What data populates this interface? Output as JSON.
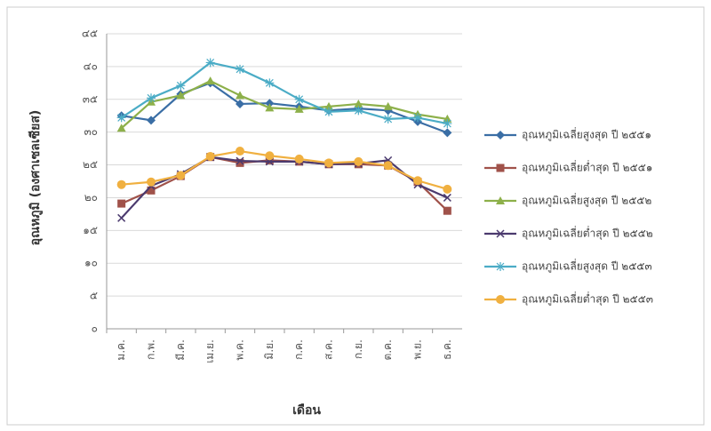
{
  "chart_data": {
    "type": "line",
    "y_label": "อุณหภูมิ (องศาเซลเซียส)",
    "x_label": "เดือน",
    "categories": [
      "ม.ค.",
      "ก.พ.",
      "มี.ค.",
      "เม.ย.",
      "พ.ค.",
      "มิ.ย.",
      "ก.ค.",
      "ส.ค.",
      "ก.ย.",
      "ต.ค.",
      "พ.ย.",
      "ธ.ค."
    ],
    "ylim": [
      0,
      45
    ],
    "yticks": [
      {
        "value": 0,
        "label": "๐"
      },
      {
        "value": 5,
        "label": "๕"
      },
      {
        "value": 10,
        "label": "๑๐"
      },
      {
        "value": 15,
        "label": "๑๕"
      },
      {
        "value": 20,
        "label": "๒๐"
      },
      {
        "value": 25,
        "label": "๒๕"
      },
      {
        "value": 30,
        "label": "๓๐"
      },
      {
        "value": 35,
        "label": "๓๕"
      },
      {
        "value": 40,
        "label": "๔๐"
      },
      {
        "value": 45,
        "label": "๔๕"
      }
    ],
    "grid": true,
    "legend": "right",
    "series": [
      {
        "name": "อุณหภูมิเฉลี่ยสูงสุด ปี ๒๕๕๑",
        "color": "#3a6ea5",
        "marker": "diamond",
        "values": [
          32.5,
          31.8,
          35.8,
          37.5,
          34.3,
          34.4,
          33.9,
          33.3,
          33.6,
          33.3,
          31.6,
          29.9
        ]
      },
      {
        "name": "อุณหภูมิเฉลี่ยต่ำสุด ปี ๒๕๕๑",
        "color": "#a0524a",
        "marker": "square",
        "values": [
          19.1,
          21.1,
          23.3,
          26.2,
          25.3,
          25.7,
          25.5,
          25.1,
          25.1,
          24.9,
          22.4,
          18.0
        ]
      },
      {
        "name": "อุณหภูมิเฉลี่ยสูงสุด ปี ๒๕๕๒",
        "color": "#8db04a",
        "marker": "triangle",
        "values": [
          30.6,
          34.6,
          35.6,
          37.8,
          35.6,
          33.7,
          33.5,
          33.9,
          34.3,
          33.9,
          32.7,
          32.0
        ]
      },
      {
        "name": "อุณหภูมิเฉลี่ยต่ำสุด ปี ๒๕๕๒",
        "color": "#4b3a6e",
        "marker": "cross",
        "values": [
          16.9,
          21.8,
          23.6,
          26.2,
          25.6,
          25.5,
          25.5,
          25.1,
          25.2,
          25.7,
          22.0,
          20.0
        ]
      },
      {
        "name": "อุณหภูมิเฉลี่ยสูงสุด ปี ๒๕๕๓",
        "color": "#4bacc6",
        "marker": "star",
        "values": [
          32.2,
          35.2,
          37.1,
          40.6,
          39.6,
          37.5,
          35.0,
          33.1,
          33.3,
          32.0,
          32.2,
          31.3
        ]
      },
      {
        "name": "อุณหภูมิเฉลี่ยต่ำสุด ปี ๒๕๕๓",
        "color": "#f0b040",
        "marker": "circle",
        "values": [
          22.0,
          22.4,
          23.4,
          26.3,
          27.1,
          26.4,
          25.9,
          25.3,
          25.5,
          24.9,
          22.6,
          21.3
        ]
      }
    ]
  }
}
